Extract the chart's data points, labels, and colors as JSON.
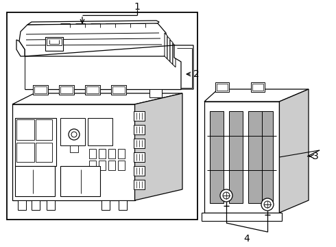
{
  "background_color": "#ffffff",
  "line_color": "#000000",
  "gray_fill": "#aaaaaa",
  "light_gray": "#cccccc",
  "label1": "1",
  "label2": "2",
  "label3": "3",
  "label4": "4",
  "figsize": [
    4.9,
    3.6
  ],
  "dpi": 100
}
